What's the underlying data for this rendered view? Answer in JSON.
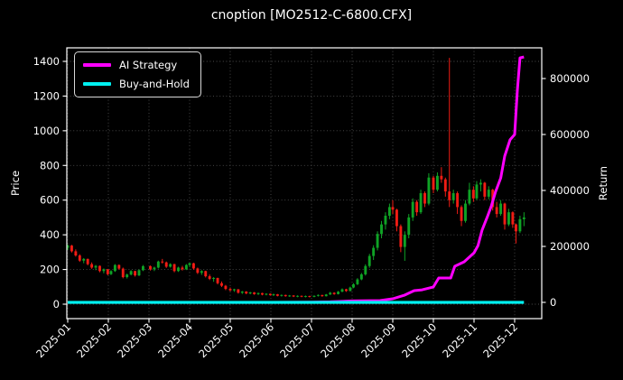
{
  "window": {
    "title": "cnoption [MO2512-C-6800.CFX]"
  },
  "chart_data": {
    "type": "candlestick+line",
    "title": "cnoption [MO2512-C-6800.CFX]",
    "background": "#000000",
    "text_color": "#ffffff",
    "grid": {
      "visible": true,
      "style": "dotted",
      "color": "#4d4d4d"
    },
    "x_axis": {
      "tick_labels": [
        "2025-01",
        "2025-02",
        "2025-03",
        "2025-04",
        "2025-05",
        "2025-06",
        "2025-07",
        "2025-08",
        "2025-09",
        "2025-10",
        "2025-11",
        "2025-12"
      ],
      "label_rotation_deg": 45
    },
    "left_axis": {
      "label": "Price",
      "tick_labels": [
        "0",
        "200",
        "400",
        "600",
        "800",
        "1000",
        "1200",
        "1400"
      ],
      "ticks": [
        0,
        200,
        400,
        600,
        800,
        1000,
        1200,
        1400
      ],
      "range": [
        -83,
        1478
      ]
    },
    "right_axis": {
      "label": "Return",
      "tick_labels": [
        "0",
        "200000",
        "400000",
        "600000",
        "800000"
      ],
      "ticks": [
        0,
        200000,
        400000,
        600000,
        800000
      ],
      "range": [
        -58000,
        910000
      ]
    },
    "legend": {
      "position": "upper-left",
      "entries": [
        {
          "label": "AI Strategy",
          "color": "#ff00ff"
        },
        {
          "label": "Buy-and-Hold",
          "color": "#00f0f0"
        }
      ]
    },
    "candles": {
      "up_color": "#0fa325",
      "down_color": "#f01c14",
      "format": [
        "month",
        "day",
        "open",
        "high",
        "low",
        "close"
      ],
      "data": [
        [
          1,
          1,
          325,
          345,
          312,
          338
        ],
        [
          1,
          4,
          338,
          342,
          298,
          305
        ],
        [
          1,
          7,
          305,
          316,
          274,
          281
        ],
        [
          1,
          10,
          281,
          288,
          244,
          251
        ],
        [
          1,
          13,
          251,
          266,
          236,
          261
        ],
        [
          1,
          16,
          261,
          263,
          224,
          231
        ],
        [
          1,
          19,
          231,
          241,
          204,
          211
        ],
        [
          1,
          22,
          211,
          226,
          196,
          221
        ],
        [
          1,
          25,
          221,
          223,
          184,
          191
        ],
        [
          1,
          28,
          191,
          206,
          178,
          201
        ],
        [
          1,
          31,
          201,
          203,
          167,
          173
        ],
        [
          2,
          3,
          173,
          196,
          168,
          191
        ],
        [
          2,
          6,
          191,
          231,
          186,
          226
        ],
        [
          2,
          9,
          226,
          229,
          199,
          205
        ],
        [
          2,
          12,
          205,
          211,
          149,
          156
        ],
        [
          2,
          15,
          156,
          176,
          148,
          171
        ],
        [
          2,
          18,
          171,
          196,
          166,
          191
        ],
        [
          2,
          21,
          191,
          193,
          159,
          166
        ],
        [
          2,
          24,
          166,
          201,
          162,
          196
        ],
        [
          2,
          27,
          196,
          226,
          191,
          219
        ],
        [
          3,
          2,
          219,
          223,
          194,
          201
        ],
        [
          3,
          5,
          201,
          216,
          191,
          211
        ],
        [
          3,
          8,
          211,
          251,
          206,
          246
        ],
        [
          3,
          11,
          246,
          261,
          234,
          241
        ],
        [
          3,
          14,
          241,
          246,
          209,
          216
        ],
        [
          3,
          17,
          216,
          236,
          211,
          231
        ],
        [
          3,
          20,
          231,
          233,
          184,
          191
        ],
        [
          3,
          23,
          191,
          216,
          186,
          211
        ],
        [
          3,
          26,
          211,
          221,
          194,
          201
        ],
        [
          3,
          29,
          201,
          231,
          197,
          226
        ],
        [
          4,
          1,
          226,
          241,
          214,
          236
        ],
        [
          4,
          4,
          236,
          239,
          199,
          206
        ],
        [
          4,
          7,
          206,
          211,
          174,
          181
        ],
        [
          4,
          10,
          181,
          196,
          169,
          191
        ],
        [
          4,
          13,
          191,
          193,
          154,
          161
        ],
        [
          4,
          16,
          161,
          171,
          139,
          146
        ],
        [
          4,
          19,
          146,
          156,
          129,
          151
        ],
        [
          4,
          22,
          151,
          153,
          114,
          121
        ],
        [
          4,
          25,
          121,
          131,
          99,
          106
        ],
        [
          4,
          28,
          106,
          111,
          81,
          88
        ],
        [
          5,
          1,
          88,
          96,
          74,
          80
        ],
        [
          5,
          4,
          80,
          89,
          71,
          86
        ],
        [
          5,
          7,
          86,
          87,
          61,
          66
        ],
        [
          5,
          10,
          66,
          76,
          59,
          73
        ],
        [
          5,
          13,
          73,
          75,
          57,
          62
        ],
        [
          5,
          16,
          62,
          71,
          57,
          68
        ],
        [
          5,
          19,
          68,
          70,
          54,
          58
        ],
        [
          5,
          22,
          58,
          67,
          53,
          64
        ],
        [
          5,
          25,
          64,
          66,
          51,
          55
        ],
        [
          5,
          28,
          55,
          63,
          51,
          60
        ],
        [
          5,
          31,
          60,
          62,
          49,
          52
        ],
        [
          6,
          3,
          52,
          61,
          47,
          57
        ],
        [
          6,
          6,
          57,
          59,
          45,
          48
        ],
        [
          6,
          9,
          48,
          56,
          44,
          53
        ],
        [
          6,
          12,
          53,
          55,
          43,
          46
        ],
        [
          6,
          15,
          46,
          53,
          42,
          50
        ],
        [
          6,
          18,
          50,
          52,
          41,
          44
        ],
        [
          6,
          21,
          44,
          51,
          40,
          48
        ],
        [
          6,
          24,
          48,
          50,
          40,
          43
        ],
        [
          6,
          27,
          43,
          50,
          39,
          47
        ],
        [
          6,
          30,
          47,
          49,
          39,
          42
        ],
        [
          7,
          3,
          42,
          51,
          40,
          48
        ],
        [
          7,
          6,
          48,
          56,
          44,
          53
        ],
        [
          7,
          9,
          53,
          54,
          43,
          46
        ],
        [
          7,
          12,
          46,
          59,
          44,
          56
        ],
        [
          7,
          15,
          56,
          71,
          53,
          66
        ],
        [
          7,
          18,
          66,
          69,
          54,
          58
        ],
        [
          7,
          21,
          58,
          76,
          56,
          72
        ],
        [
          7,
          24,
          72,
          91,
          69,
          86
        ],
        [
          7,
          27,
          86,
          89,
          71,
          76
        ],
        [
          7,
          30,
          76,
          101,
          74,
          96
        ],
        [
          8,
          2,
          96,
          121,
          92,
          115
        ],
        [
          8,
          5,
          115,
          150,
          110,
          143
        ],
        [
          8,
          8,
          143,
          180,
          138,
          172
        ],
        [
          8,
          11,
          172,
          230,
          165,
          220
        ],
        [
          8,
          14,
          220,
          290,
          210,
          278
        ],
        [
          8,
          17,
          278,
          340,
          255,
          325
        ],
        [
          8,
          20,
          325,
          420,
          310,
          405
        ],
        [
          8,
          23,
          405,
          480,
          380,
          460
        ],
        [
          8,
          26,
          460,
          530,
          430,
          510
        ],
        [
          8,
          29,
          510,
          580,
          490,
          560
        ],
        [
          9,
          1,
          560,
          600,
          520,
          545
        ],
        [
          9,
          4,
          545,
          550,
          420,
          450
        ],
        [
          9,
          7,
          450,
          460,
          300,
          330
        ],
        [
          9,
          10,
          330,
          420,
          250,
          400
        ],
        [
          9,
          13,
          400,
          520,
          380,
          500
        ],
        [
          9,
          16,
          500,
          610,
          480,
          590
        ],
        [
          9,
          19,
          590,
          600,
          510,
          530
        ],
        [
          9,
          22,
          530,
          660,
          520,
          640
        ],
        [
          9,
          25,
          640,
          650,
          560,
          580
        ],
        [
          9,
          28,
          580,
          755,
          570,
          730
        ],
        [
          10,
          1,
          730,
          740,
          640,
          660
        ],
        [
          10,
          4,
          660,
          760,
          650,
          740
        ],
        [
          10,
          7,
          740,
          790,
          700,
          720
        ],
        [
          10,
          10,
          720,
          730,
          620,
          650
        ],
        [
          10,
          13,
          650,
          1420,
          560,
          600
        ],
        [
          10,
          16,
          600,
          660,
          580,
          640
        ],
        [
          10,
          19,
          640,
          650,
          520,
          560
        ],
        [
          10,
          22,
          560,
          570,
          450,
          480
        ],
        [
          10,
          25,
          480,
          600,
          470,
          580
        ],
        [
          10,
          28,
          580,
          700,
          570,
          660
        ],
        [
          10,
          31,
          660,
          680,
          590,
          610
        ],
        [
          11,
          3,
          610,
          710,
          600,
          690
        ],
        [
          11,
          6,
          690,
          720,
          650,
          700
        ],
        [
          11,
          9,
          700,
          705,
          600,
          620
        ],
        [
          11,
          12,
          620,
          680,
          605,
          660
        ],
        [
          11,
          15,
          660,
          665,
          540,
          560
        ],
        [
          11,
          18,
          560,
          590,
          500,
          520
        ],
        [
          11,
          21,
          520,
          600,
          510,
          580
        ],
        [
          11,
          24,
          580,
          585,
          430,
          460
        ],
        [
          11,
          27,
          460,
          550,
          450,
          530
        ],
        [
          11,
          30,
          530,
          535,
          440,
          460
        ],
        [
          12,
          2,
          460,
          465,
          350,
          420
        ],
        [
          12,
          5,
          420,
          510,
          410,
          490
        ],
        [
          12,
          8,
          490,
          530,
          450,
          500
        ]
      ]
    },
    "series": [
      {
        "name": "AI Strategy",
        "axis": "right",
        "color": "#ff00ff",
        "width": 3,
        "format": [
          "month",
          "day",
          "return"
        ],
        "points": [
          [
            1,
            1,
            0
          ],
          [
            2,
            1,
            0
          ],
          [
            3,
            1,
            0
          ],
          [
            4,
            1,
            0
          ],
          [
            5,
            1,
            0
          ],
          [
            6,
            1,
            0
          ],
          [
            7,
            1,
            1000
          ],
          [
            7,
            15,
            2000
          ],
          [
            8,
            1,
            5000
          ],
          [
            8,
            15,
            6000
          ],
          [
            8,
            22,
            6500
          ],
          [
            9,
            1,
            13000
          ],
          [
            9,
            10,
            26000
          ],
          [
            9,
            17,
            42000
          ],
          [
            9,
            23,
            45000
          ],
          [
            10,
            1,
            55000
          ],
          [
            10,
            5,
            87000
          ],
          [
            10,
            14,
            87000
          ],
          [
            10,
            17,
            129000
          ],
          [
            10,
            24,
            145000
          ],
          [
            11,
            1,
            177000
          ],
          [
            11,
            4,
            203000
          ],
          [
            11,
            7,
            258000
          ],
          [
            11,
            11,
            306000
          ],
          [
            11,
            14,
            345000
          ],
          [
            11,
            17,
            394000
          ],
          [
            11,
            21,
            445000
          ],
          [
            11,
            24,
            523000
          ],
          [
            11,
            28,
            581000
          ],
          [
            12,
            1,
            600000
          ],
          [
            12,
            3,
            758000
          ],
          [
            12,
            5,
            874000
          ],
          [
            12,
            8,
            877000
          ]
        ]
      },
      {
        "name": "Buy-and-Hold",
        "axis": "right",
        "color": "#00f0f0",
        "width": 3.2,
        "format": [
          "month",
          "day",
          "return"
        ],
        "points": [
          [
            1,
            1,
            0
          ],
          [
            12,
            8,
            0
          ]
        ]
      }
    ]
  }
}
